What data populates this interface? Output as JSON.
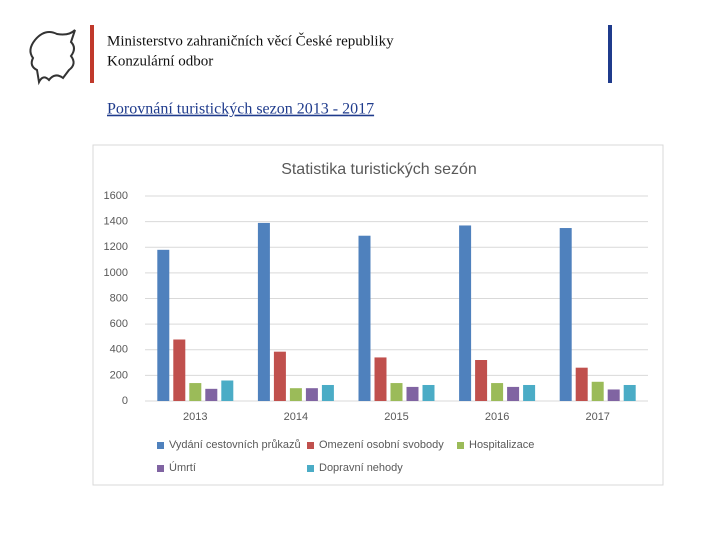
{
  "header": {
    "ministry": "Ministerstvo zahraničních věcí České republiky",
    "department": "Konzulární odbor",
    "link": "Porovnání turistických sezon 2013 - 2017"
  },
  "chart_data": {
    "type": "bar",
    "title": "Statistika turistických sezón",
    "categories": [
      "2013",
      "2014",
      "2015",
      "2016",
      "2017"
    ],
    "series": [
      {
        "name": "Vydání cestovních průkazů",
        "color": "#4f81bd",
        "values": [
          1180,
          1390,
          1290,
          1370,
          1350
        ]
      },
      {
        "name": "Omezení osobní svobody",
        "color": "#c0504d",
        "values": [
          480,
          385,
          340,
          320,
          260
        ]
      },
      {
        "name": "Hospitalizace",
        "color": "#9bbb59",
        "values": [
          140,
          100,
          140,
          140,
          150
        ]
      },
      {
        "name": "Úmrtí",
        "color": "#8064a2",
        "values": [
          95,
          100,
          110,
          110,
          90
        ]
      },
      {
        "name": "Dopravní nehody",
        "color": "#4bacc6",
        "values": [
          160,
          125,
          125,
          125,
          125
        ]
      }
    ],
    "ylim": [
      0,
      1600
    ],
    "yticks": [
      0,
      200,
      400,
      600,
      800,
      1000,
      1200,
      1400,
      1600
    ],
    "grid": true
  }
}
